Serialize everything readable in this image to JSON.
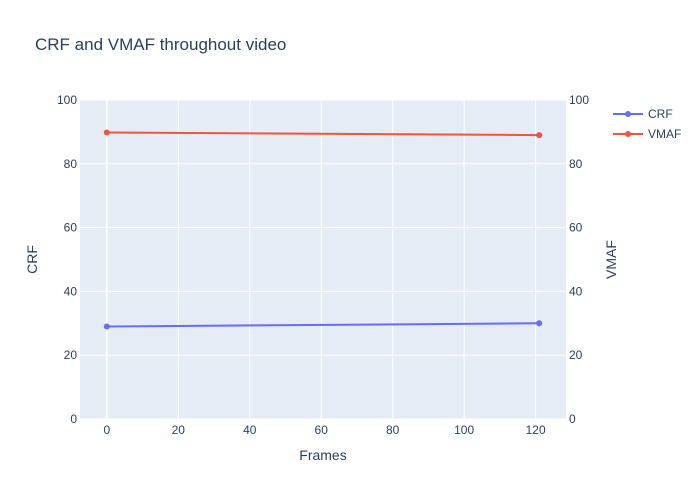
{
  "chart_data": {
    "type": "line",
    "title": "CRF and VMAF throughout video",
    "xlabel": "Frames",
    "ylabel": "CRF",
    "y2label": "VMAF",
    "xlim": [
      -7.5,
      128.5
    ],
    "xticks": [
      0,
      20,
      40,
      60,
      80,
      100,
      120
    ],
    "ylim": [
      0,
      100
    ],
    "y2lim": [
      0,
      100
    ],
    "yticks": [
      0,
      20,
      40,
      60,
      80,
      100
    ],
    "grid": true,
    "legend_position": "top-right",
    "series": [
      {
        "name": "CRF",
        "axis": "y",
        "color": "#636efa",
        "x": [
          0,
          121
        ],
        "y": [
          29,
          30
        ]
      },
      {
        "name": "VMAF",
        "axis": "y2",
        "color": "#ef553b",
        "x": [
          0,
          121
        ],
        "y": [
          89.8,
          89
        ]
      }
    ]
  }
}
